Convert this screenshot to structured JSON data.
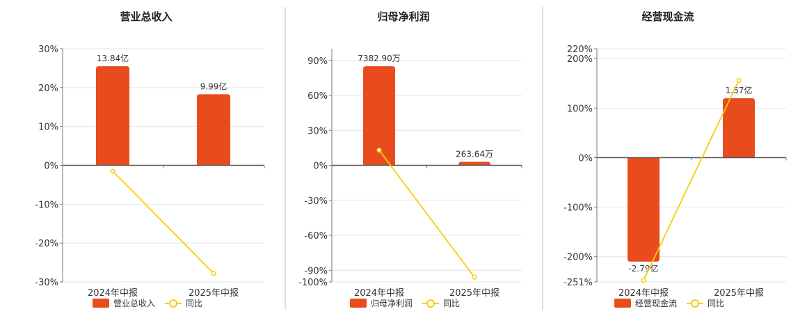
{
  "colors": {
    "bar": "#e84c1c",
    "line": "#f2cf0a"
  },
  "chart_data": [
    {
      "type": "bar",
      "title": "营业总收入",
      "categories": [
        "2024年中报",
        "2025年中报"
      ],
      "series": [
        {
          "name": "营业总收入",
          "type": "bar",
          "values": [
            25.5,
            18.3
          ],
          "labels": [
            "13.84亿",
            "9.99亿"
          ]
        },
        {
          "name": "同比",
          "type": "line",
          "values": [
            -1.5,
            -27.8
          ]
        }
      ],
      "yticks": [
        "30%",
        "20%",
        "10%",
        "0%",
        "-10%",
        "-20%",
        "-30%"
      ],
      "ylim": [
        -30,
        30
      ]
    },
    {
      "type": "bar",
      "title": "归母净利润",
      "categories": [
        "2024年中报",
        "2025年中报"
      ],
      "series": [
        {
          "name": "归母净利润",
          "type": "bar",
          "values": [
            85,
            3
          ],
          "labels": [
            "7382.90万",
            "263.64万"
          ]
        },
        {
          "name": "同比",
          "type": "line",
          "values": [
            13,
            -96
          ]
        }
      ],
      "yticks": [
        "90%",
        "60%",
        "30%",
        "0%",
        "-30%",
        "-60%",
        "-90%",
        "-100%"
      ],
      "ylim": [
        -100,
        100
      ]
    },
    {
      "type": "bar",
      "title": "经营现金流",
      "categories": [
        "2024年中报",
        "2025年中报"
      ],
      "series": [
        {
          "name": "经营现金流",
          "type": "bar",
          "values": [
            -210,
            120
          ],
          "labels": [
            "-2.79亿",
            "1.57亿"
          ]
        },
        {
          "name": "同比",
          "type": "line",
          "values": [
            -248,
            156
          ]
        }
      ],
      "yticks": [
        "220%",
        "200%",
        "100%",
        "0%",
        "-100%",
        "-200%",
        "-251%"
      ],
      "ylim": [
        -251,
        220
      ]
    }
  ]
}
